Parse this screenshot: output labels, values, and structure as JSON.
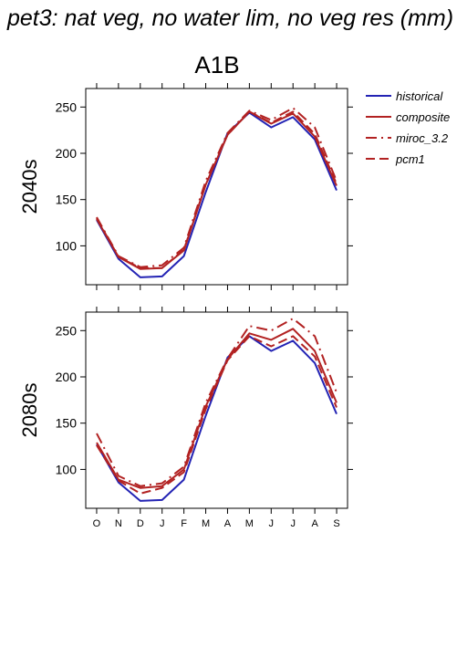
{
  "figure": {
    "title": "pet3: nat veg, no water lim, no veg res (mm)",
    "scenario": "A1B"
  },
  "legend": [
    {
      "name": "historical",
      "color": "#2323b4",
      "dash": "solid"
    },
    {
      "name": "composite",
      "color": "#b22222",
      "dash": "solid"
    },
    {
      "name": "miroc_3.2",
      "color": "#b22222",
      "dash": "dashdot"
    },
    {
      "name": "pcm1",
      "color": "#b22222",
      "dash": "dashed"
    }
  ],
  "chart_data": [
    {
      "type": "line",
      "title": "2040s",
      "xlabel": "",
      "ylabel": "2040s",
      "categories": [
        "O",
        "N",
        "D",
        "J",
        "F",
        "M",
        "A",
        "M",
        "J",
        "J",
        "A",
        "S"
      ],
      "ylim": [
        58,
        270
      ],
      "yticks": [
        100,
        150,
        200,
        250
      ],
      "series": [
        {
          "name": "historical",
          "values": [
            128,
            86,
            66,
            67,
            89,
            158,
            222,
            244,
            228,
            239,
            215,
            160
          ]
        },
        {
          "name": "composite",
          "values": [
            129,
            88,
            75,
            76,
            95,
            166,
            220,
            245,
            232,
            243,
            218,
            165
          ]
        },
        {
          "name": "miroc_3.2",
          "values": [
            131,
            89,
            77,
            79,
            98,
            170,
            222,
            246,
            236,
            249,
            228,
            170
          ]
        },
        {
          "name": "pcm1",
          "values": [
            130,
            88,
            76,
            76,
            96,
            166,
            220,
            245,
            233,
            245,
            221,
            167
          ]
        }
      ]
    },
    {
      "type": "line",
      "title": "2080s",
      "xlabel": "",
      "ylabel": "2080s",
      "categories": [
        "O",
        "N",
        "D",
        "J",
        "F",
        "M",
        "A",
        "M",
        "J",
        "J",
        "A",
        "S"
      ],
      "ylim": [
        58,
        270
      ],
      "yticks": [
        100,
        150,
        200,
        250
      ],
      "series": [
        {
          "name": "historical",
          "values": [
            127,
            86,
            66,
            67,
            89,
            158,
            221,
            244,
            228,
            239,
            215,
            160
          ]
        },
        {
          "name": "composite",
          "values": [
            129,
            89,
            80,
            82,
            100,
            168,
            219,
            247,
            240,
            252,
            228,
            172
          ]
        },
        {
          "name": "miroc_3.2",
          "values": [
            139,
            93,
            82,
            85,
            103,
            172,
            220,
            255,
            250,
            263,
            244,
            183
          ]
        },
        {
          "name": "pcm1",
          "values": [
            126,
            88,
            74,
            80,
            97,
            165,
            218,
            244,
            233,
            244,
            222,
            167
          ]
        }
      ]
    }
  ]
}
